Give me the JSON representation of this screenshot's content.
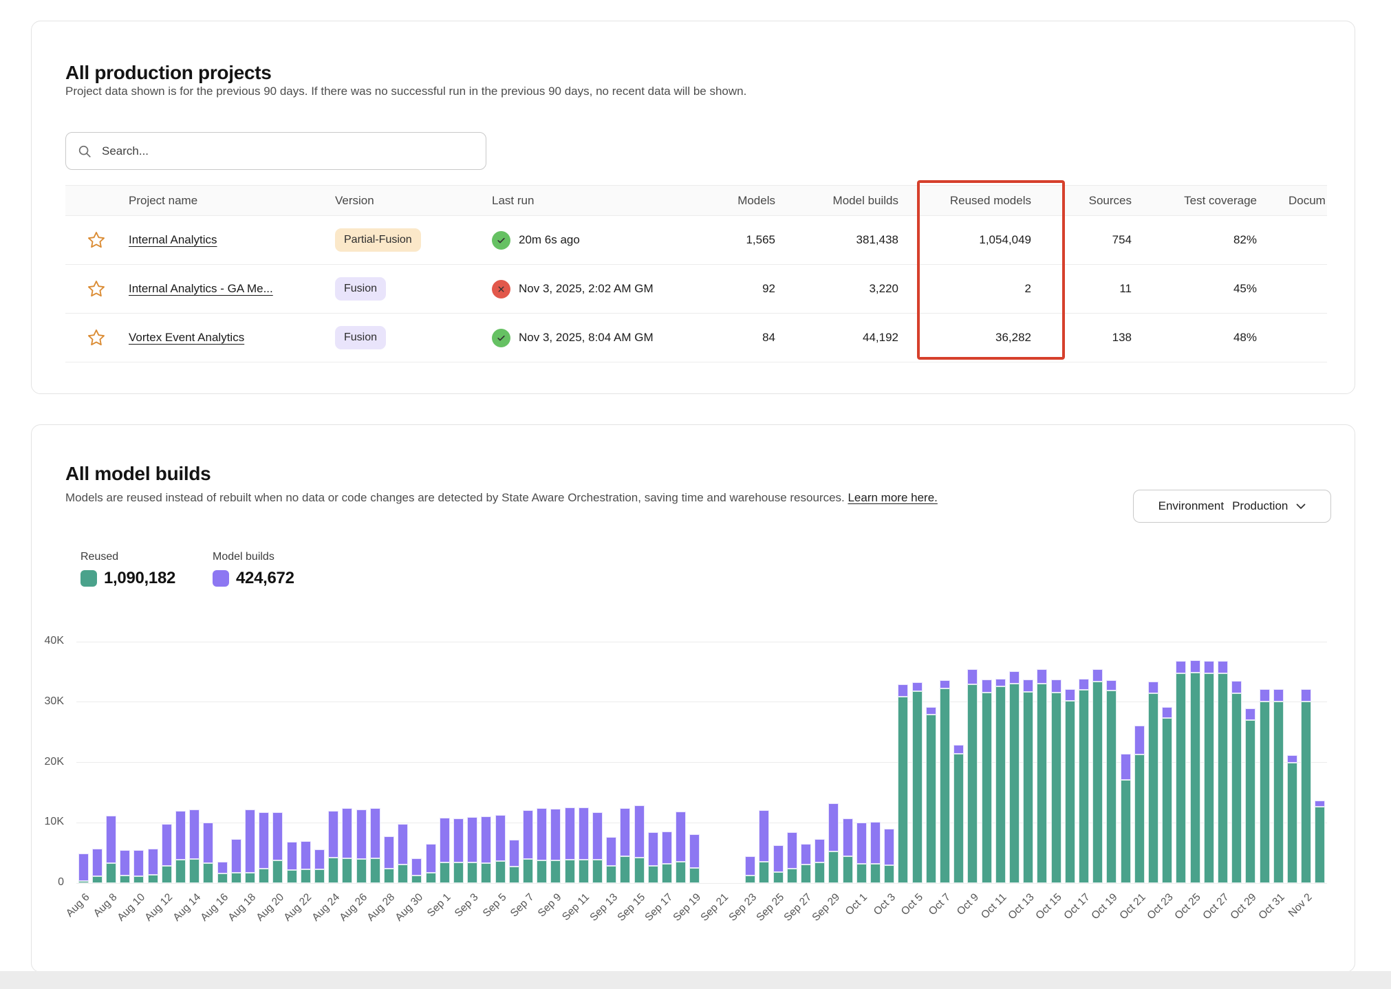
{
  "projects_card": {
    "title": "All production projects",
    "subtitle": "Project data shown is for the previous 90 days. If there was no successful run in the previous 90 days, no recent data will be shown.",
    "search_placeholder": "Search...",
    "table": {
      "columns": {
        "project": "Project name",
        "version": "Version",
        "last_run": "Last run",
        "models": "Models",
        "model_builds": "Model builds",
        "reused": "Reused models",
        "sources": "Sources",
        "coverage": "Test coverage",
        "docs": "Docum"
      },
      "rows": [
        {
          "name": "Internal Analytics",
          "version": "Partial-Fusion",
          "status": "success",
          "last_run": "20m 6s ago",
          "models": "1,565",
          "model_builds": "381,438",
          "reused": "1,054,049",
          "sources": "754",
          "coverage": "82%"
        },
        {
          "name": "Internal Analytics - GA Me...",
          "version": "Fusion",
          "status": "error",
          "last_run": "Nov 3, 2025, 2:02 AM GM",
          "models": "92",
          "model_builds": "3,220",
          "reused": "2",
          "sources": "11",
          "coverage": "45%"
        },
        {
          "name": "Vortex Event Analytics",
          "version": "Fusion",
          "status": "success",
          "last_run": "Nov 3, 2025, 8:04 AM GM",
          "models": "84",
          "model_builds": "44,192",
          "reused": "36,282",
          "sources": "138",
          "coverage": "48%"
        }
      ]
    },
    "annotation_color": "#d6402c"
  },
  "builds_card": {
    "title": "All model builds",
    "description_before_link": "Models are reused instead of rebuilt when no data or code changes are detected by State Aware Orchestration, saving time and warehouse resources. ",
    "link_text": "Learn more here.",
    "env_filter": {
      "label": "Environment",
      "value": "Production"
    },
    "legend": [
      {
        "name": "Reused",
        "value": "1,090,182",
        "color": "#4aa28b"
      },
      {
        "name": "Model builds",
        "value": "424,672",
        "color": "#8d77f2"
      }
    ]
  },
  "chart_data": {
    "type": "bar",
    "stacked": true,
    "title": "All model builds",
    "xlabel": "",
    "ylabel": "",
    "ylim": [
      0,
      40000
    ],
    "yticks": [
      "0",
      "10K",
      "20K",
      "30K",
      "40K"
    ],
    "grid": true,
    "legend_position": "top-left",
    "x_tick_every": 2,
    "x": [
      "Aug 6",
      "Aug 7",
      "Aug 8",
      "Aug 9",
      "Aug 10",
      "Aug 11",
      "Aug 12",
      "Aug 13",
      "Aug 14",
      "Aug 15",
      "Aug 16",
      "Aug 17",
      "Aug 18",
      "Aug 19",
      "Aug 20",
      "Aug 21",
      "Aug 22",
      "Aug 23",
      "Aug 24",
      "Aug 25",
      "Aug 26",
      "Aug 27",
      "Aug 28",
      "Aug 29",
      "Aug 30",
      "Aug 31",
      "Sep 1",
      "Sep 2",
      "Sep 3",
      "Sep 4",
      "Sep 5",
      "Sep 6",
      "Sep 7",
      "Sep 8",
      "Sep 9",
      "Sep 10",
      "Sep 11",
      "Sep 12",
      "Sep 13",
      "Sep 14",
      "Sep 15",
      "Sep 16",
      "Sep 17",
      "Sep 18",
      "Sep 19",
      "Sep 20",
      "Sep 21",
      "Sep 22",
      "Sep 23",
      "Sep 24",
      "Sep 25",
      "Sep 26",
      "Sep 27",
      "Sep 28",
      "Sep 29",
      "Sep 30",
      "Oct 1",
      "Oct 2",
      "Oct 3",
      "Oct 4",
      "Oct 5",
      "Oct 6",
      "Oct 7",
      "Oct 8",
      "Oct 9",
      "Oct 10",
      "Oct 11",
      "Oct 12",
      "Oct 13",
      "Oct 14",
      "Oct 15",
      "Oct 16",
      "Oct 17",
      "Oct 18",
      "Oct 19",
      "Oct 20",
      "Oct 21",
      "Oct 22",
      "Oct 23",
      "Oct 24",
      "Oct 25",
      "Oct 26",
      "Oct 27",
      "Oct 28",
      "Oct 29",
      "Oct 30",
      "Oct 31",
      "Nov 1",
      "Nov 2",
      "Nov 3"
    ],
    "series": [
      {
        "name": "Reused",
        "color": "#4aa28b",
        "values": [
          300,
          1100,
          3300,
          1200,
          1100,
          1400,
          2900,
          3900,
          4000,
          3300,
          1600,
          1700,
          1700,
          2400,
          3800,
          2200,
          2300,
          2300,
          4200,
          4100,
          4000,
          4100,
          2400,
          3100,
          1200,
          1700,
          3400,
          3400,
          3400,
          3300,
          3600,
          2700,
          4000,
          3800,
          3800,
          3900,
          3900,
          3900,
          2800,
          4400,
          4200,
          2900,
          3200,
          3500,
          2500,
          0,
          0,
          0,
          1300,
          3500,
          1800,
          2400,
          3100,
          3400,
          5200,
          4500,
          3200,
          3200,
          3000,
          30900,
          31800,
          27900,
          32300,
          21400,
          32900,
          31600,
          32600,
          33100,
          31700,
          33000,
          31600,
          30200,
          32000,
          33400,
          31900,
          17100,
          21300,
          31400,
          27300,
          34800,
          34900,
          34800,
          34800,
          31500,
          27000,
          30100,
          30100,
          19900,
          30100,
          12700
        ]
      },
      {
        "name": "Model builds",
        "color": "#8d77f2",
        "values": [
          4600,
          4600,
          7900,
          4200,
          4300,
          4300,
          6900,
          8100,
          8200,
          6700,
          1900,
          5600,
          10500,
          9300,
          8000,
          4700,
          4700,
          3300,
          7800,
          8300,
          8200,
          8300,
          5400,
          6700,
          2900,
          4800,
          7400,
          7300,
          7500,
          7700,
          7600,
          4500,
          8100,
          8700,
          8500,
          8700,
          8700,
          7900,
          4800,
          8000,
          8700,
          5600,
          5400,
          8300,
          5600,
          0,
          0,
          0,
          3200,
          8500,
          4500,
          6000,
          3400,
          3900,
          8000,
          6300,
          6800,
          7000,
          6000,
          2100,
          1500,
          1300,
          1400,
          1500,
          2500,
          2200,
          1300,
          2100,
          2000,
          2400,
          2200,
          1900,
          1800,
          2000,
          1700,
          4300,
          4800,
          1900,
          1800,
          2100,
          2100,
          2100,
          2100,
          2000,
          1900,
          2000,
          2000,
          1200,
          2000,
          1000
        ]
      }
    ]
  }
}
